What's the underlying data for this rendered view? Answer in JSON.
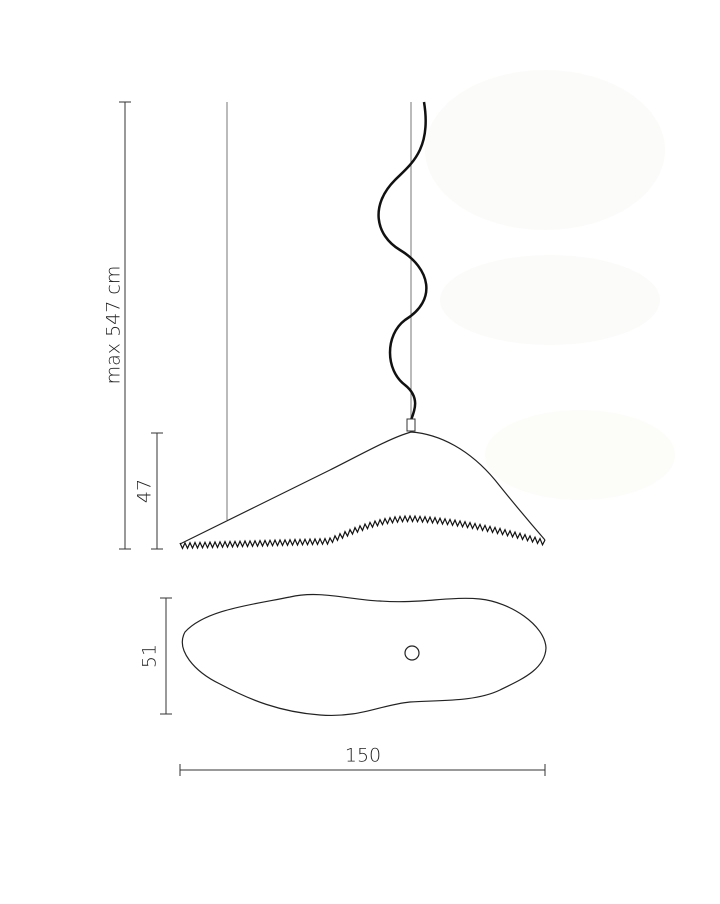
{
  "dimensions": {
    "overall_height": "max 547 cm",
    "shade_height": "47",
    "shade_depth": "51",
    "shade_width": "150"
  }
}
